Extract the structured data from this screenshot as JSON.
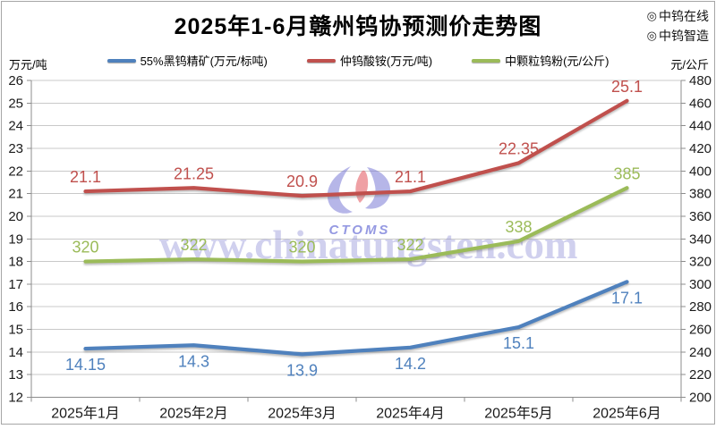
{
  "branding": {
    "icon": "◎",
    "source1": "中钨在线",
    "source2": "中钨智造"
  },
  "watermark": {
    "url": "www.chinatungsten.com",
    "logo_text": "CTOMS"
  },
  "chart_data": {
    "type": "line",
    "title": "2025年1-6月赣州钨协预测价走势图",
    "categories": [
      "2025年1月",
      "2025年2月",
      "2025年3月",
      "2025年4月",
      "2025年5月",
      "2025年6月"
    ],
    "series": [
      {
        "name": "55%黑钨精矿(万元/标吨)",
        "color": "#4F81BD",
        "axis": "left",
        "label_position": "below",
        "values": [
          14.15,
          14.3,
          13.9,
          14.2,
          15.1,
          17.1
        ]
      },
      {
        "name": "仲钨酸铵(万元/吨)",
        "color": "#C0504D",
        "axis": "left",
        "label_position": "above",
        "values": [
          21.1,
          21.25,
          20.9,
          21.1,
          22.35,
          25.1
        ]
      },
      {
        "name": "中颗粒钨粉(元/公斤)",
        "color": "#9BBB59",
        "axis": "right",
        "label_position": "above",
        "values": [
          320,
          322,
          320,
          322,
          338,
          385
        ]
      }
    ],
    "left_axis": {
      "title": "万元/吨",
      "min": 12,
      "max": 26,
      "step": 1
    },
    "right_axis": {
      "title": "元/公斤",
      "min": 200,
      "max": 480,
      "step": 20
    },
    "grid": true,
    "legend_position": "top"
  }
}
